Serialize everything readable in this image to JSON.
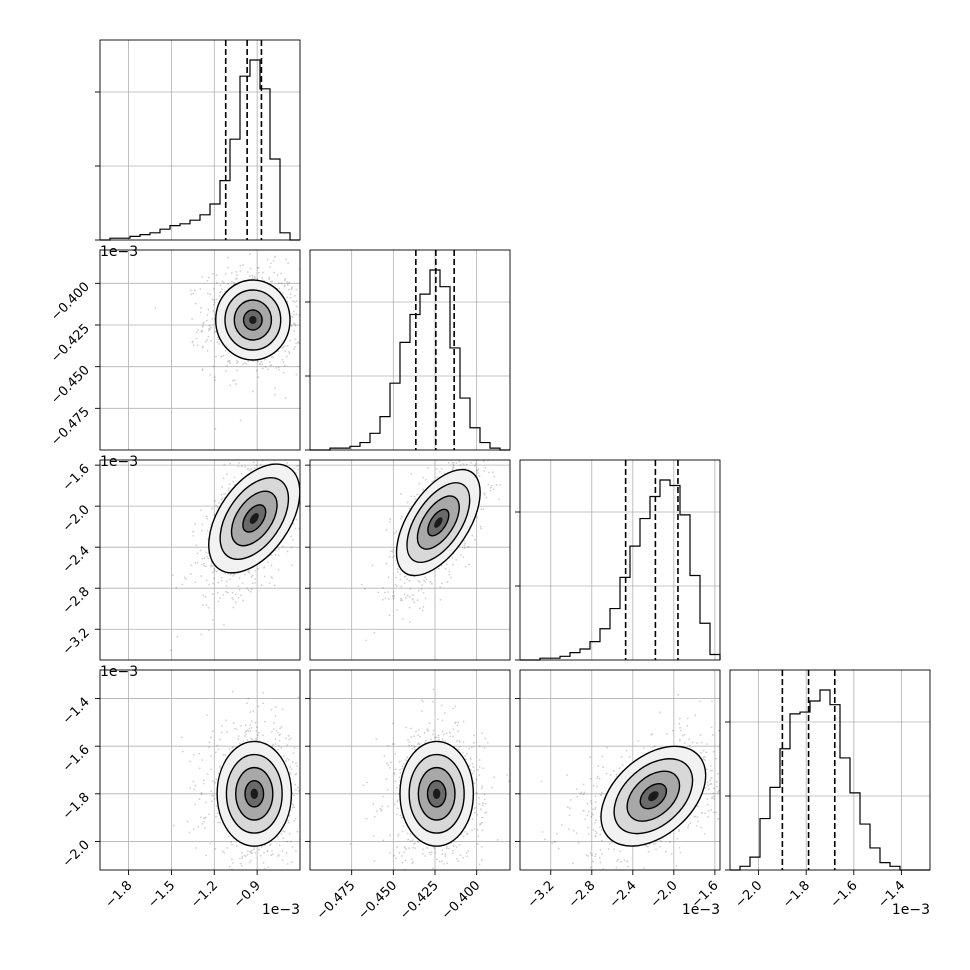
{
  "chart_data": {
    "type": "corner",
    "grid": true,
    "params": [
      {
        "range": [
          -2.0,
          -0.6
        ],
        "ticks": [
          -1.8,
          -1.5,
          -1.2,
          -0.9
        ],
        "tick_labels": [
          "−1.8",
          "−1.5",
          "−1.2",
          "−0.9"
        ],
        "multiplier": "1e−3",
        "quantiles": [
          -1.12,
          -0.97,
          -0.87
        ],
        "hist_values": [
          0,
          1,
          1,
          2,
          3,
          4,
          6,
          8,
          9,
          11,
          14,
          20,
          33,
          56,
          91,
          100,
          84,
          45,
          4,
          0
        ]
      },
      {
        "range": [
          -0.5,
          -0.38
        ],
        "ticks": [
          -0.475,
          -0.45,
          -0.425,
          -0.4
        ],
        "tick_labels": [
          "−0.475",
          "−0.450",
          "−0.425",
          "−0.400"
        ],
        "multiplier": "1e−3",
        "quantiles": [
          -0.4365,
          -0.4245,
          -0.4135
        ],
        "hist_values": [
          0,
          0,
          1,
          1,
          2,
          4,
          9,
          18,
          36,
          58,
          73,
          84,
          97,
          88,
          55,
          28,
          12,
          4,
          1,
          0
        ]
      },
      {
        "range": [
          -3.5,
          -1.55
        ],
        "ticks": [
          -3.2,
          -2.8,
          -2.4,
          -2.0,
          -1.6
        ],
        "tick_labels": [
          "−3.2",
          "−2.8",
          "−2.4",
          "−2.0",
          "−1.6"
        ],
        "multiplier": "1e−3",
        "quantiles": [
          -2.47,
          -2.18,
          -1.96
        ],
        "hist_values": [
          0,
          0,
          1,
          1,
          2,
          4,
          6,
          10,
          17,
          28,
          45,
          62,
          77,
          89,
          98,
          95,
          79,
          46,
          20,
          3
        ]
      },
      {
        "range": [
          -2.12,
          -1.28
        ],
        "ticks": [
          -2.0,
          -1.8,
          -1.6,
          -1.4
        ],
        "tick_labels": [
          "−2.0",
          "−1.8",
          "−1.6",
          "−1.4"
        ],
        "multiplier": "1e−3",
        "quantiles": [
          -1.9,
          -1.79,
          -1.68
        ],
        "hist_values": [
          0,
          2,
          7,
          28,
          45,
          66,
          85,
          86,
          92,
          98,
          90,
          61,
          42,
          25,
          12,
          4,
          2,
          0,
          0,
          0
        ]
      }
    ],
    "pairs": [
      {
        "row": 1,
        "col": 0,
        "center": [
          -0.93,
          -0.422
        ],
        "spread": [
          0.13,
          0.012
        ],
        "corr": 0.0
      },
      {
        "row": 2,
        "col": 0,
        "center": [
          -0.92,
          -2.12
        ],
        "spread": [
          0.14,
          0.28
        ],
        "corr": 0.55
      },
      {
        "row": 2,
        "col": 1,
        "center": [
          -0.423,
          -2.16
        ],
        "spread": [
          0.011,
          0.27
        ],
        "corr": 0.65
      },
      {
        "row": 3,
        "col": 0,
        "center": [
          -0.92,
          -1.8
        ],
        "spread": [
          0.13,
          0.11
        ],
        "corr": 0.0
      },
      {
        "row": 3,
        "col": 1,
        "center": [
          -0.424,
          -1.8
        ],
        "spread": [
          0.011,
          0.11
        ],
        "corr": 0.0
      },
      {
        "row": 3,
        "col": 2,
        "center": [
          -2.2,
          -1.81
        ],
        "spread": [
          0.26,
          0.1
        ],
        "corr": 0.45
      }
    ],
    "colors": {
      "axes": "#000000",
      "grid": "#b0b0b0",
      "points": "#000000",
      "background": "#ffffff"
    }
  }
}
